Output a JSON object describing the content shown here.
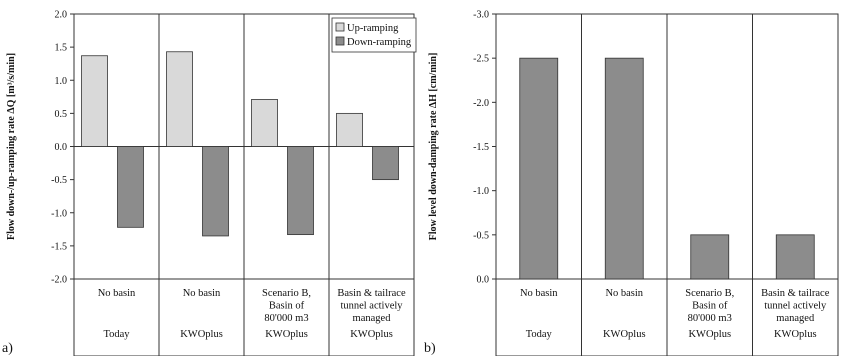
{
  "chart_data": [
    {
      "type": "bar",
      "panel_label": "a)",
      "ylabel": "Flow down-/up-ramping rate ΔQ [m³/s/min]",
      "ylim": [
        -2.0,
        2.0
      ],
      "ytick_step": 0.5,
      "yticks": [
        "2.0",
        "1.5",
        "1.0",
        "0.5",
        "0.0",
        "-0.5",
        "-1.0",
        "-1.5",
        "-2.0"
      ],
      "categories": [
        {
          "lines": [
            "No basin"
          ],
          "group": "Today"
        },
        {
          "lines": [
            "No basin"
          ],
          "group": "KWOplus"
        },
        {
          "lines": [
            "Scenario B,",
            "Basin of",
            "80'000 m3"
          ],
          "group": "KWOplus"
        },
        {
          "lines": [
            "Basin & tailrace",
            "tunnel actively",
            "managed"
          ],
          "group": "KWOplus"
        }
      ],
      "series": [
        {
          "name": "Up-ramping",
          "color": "#d9d9d9",
          "values": [
            1.37,
            1.43,
            0.71,
            0.5
          ]
        },
        {
          "name": "Down-ramping",
          "color": "#8c8c8c",
          "values": [
            -1.22,
            -1.35,
            -1.33,
            -0.5
          ]
        }
      ],
      "legend": "top-right"
    },
    {
      "type": "bar",
      "panel_label": "b)",
      "ylabel": "Flow level down-damping rate ΔH [cm/min]",
      "ylim": [
        0.0,
        -3.0
      ],
      "ytick_step": 0.5,
      "yticks": [
        "-3.0",
        "-2.5",
        "-2.0",
        "-1.5",
        "-1.0",
        "-0.5",
        "0.0"
      ],
      "categories": [
        {
          "lines": [
            "No basin"
          ],
          "group": "Today"
        },
        {
          "lines": [
            "No basin"
          ],
          "group": "KWOplus"
        },
        {
          "lines": [
            "Scenario B,",
            "Basin of",
            "80'000 m3"
          ],
          "group": "KWOplus"
        },
        {
          "lines": [
            "Basin & tailrace",
            "tunnel actively",
            "managed"
          ],
          "group": "KWOplus"
        }
      ],
      "series": [
        {
          "name": "",
          "color": "#8c8c8c",
          "values": [
            -2.5,
            -2.5,
            -0.5,
            -0.5
          ]
        }
      ]
    }
  ]
}
